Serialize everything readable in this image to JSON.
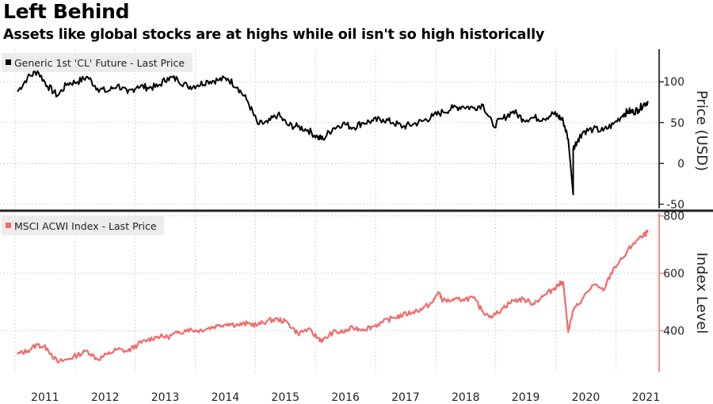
{
  "title": "Left Behind",
  "subtitle": "Assets like global stocks are at highs while oil isn't so high historically",
  "chart_data": [
    {
      "type": "line",
      "legend": "Generic 1st 'CL' Future - Last Price",
      "ylabel": "Price (USD)",
      "yticks": [
        "100",
        "50",
        "0",
        "-50"
      ],
      "ylim": [
        -55,
        140
      ],
      "color": "#000000",
      "x": [
        "2011-01",
        "2011-03",
        "2011-05",
        "2011-07",
        "2011-09",
        "2011-11",
        "2012-01",
        "2012-03",
        "2012-05",
        "2012-07",
        "2012-09",
        "2012-11",
        "2013-01",
        "2013-03",
        "2013-05",
        "2013-07",
        "2013-09",
        "2013-11",
        "2014-01",
        "2014-03",
        "2014-05",
        "2014-07",
        "2014-09",
        "2014-11",
        "2015-01",
        "2015-03",
        "2015-05",
        "2015-07",
        "2015-09",
        "2015-11",
        "2016-01",
        "2016-02",
        "2016-04",
        "2016-06",
        "2016-08",
        "2016-10",
        "2016-12",
        "2017-02",
        "2017-04",
        "2017-06",
        "2017-08",
        "2017-10",
        "2017-12",
        "2018-02",
        "2018-04",
        "2018-06",
        "2018-08",
        "2018-10",
        "2018-12",
        "2019-02",
        "2019-04",
        "2019-06",
        "2019-08",
        "2019-10",
        "2019-12",
        "2020-01",
        "2020-02",
        "2020-03",
        "2020-04",
        "2020-04",
        "2020-05",
        "2020-06",
        "2020-08",
        "2020-10",
        "2020-12",
        "2021-02",
        "2021-03",
        "2021-04",
        "2021-05",
        "2021-06",
        "2021-07"
      ],
      "values": [
        88,
        105,
        113,
        95,
        83,
        98,
        100,
        106,
        92,
        88,
        96,
        86,
        95,
        93,
        94,
        105,
        103,
        94,
        96,
        101,
        102,
        104,
        93,
        76,
        48,
        50,
        60,
        47,
        45,
        41,
        32,
        30,
        43,
        49,
        44,
        50,
        52,
        54,
        50,
        45,
        48,
        52,
        58,
        63,
        68,
        70,
        68,
        72,
        46,
        55,
        64,
        54,
        56,
        55,
        61,
        58,
        52,
        30,
        -38,
        18,
        30,
        39,
        42,
        40,
        48,
        60,
        64,
        63,
        66,
        72,
        76
      ]
    },
    {
      "type": "line",
      "legend": "MSCI ACWI Index - Last Price",
      "ylabel": "Index Level",
      "yticks": [
        "800",
        "600",
        "400"
      ],
      "ylim": [
        255,
        810
      ],
      "color": "#f06a6a",
      "x": [
        "2011-01",
        "2011-03",
        "2011-05",
        "2011-07",
        "2011-09",
        "2011-11",
        "2012-01",
        "2012-03",
        "2012-05",
        "2012-07",
        "2012-09",
        "2012-11",
        "2013-01",
        "2013-03",
        "2013-05",
        "2013-07",
        "2013-09",
        "2013-11",
        "2014-01",
        "2014-03",
        "2014-05",
        "2014-07",
        "2014-09",
        "2014-11",
        "2015-01",
        "2015-03",
        "2015-05",
        "2015-07",
        "2015-09",
        "2015-11",
        "2016-01",
        "2016-02",
        "2016-04",
        "2016-06",
        "2016-08",
        "2016-10",
        "2016-12",
        "2017-02",
        "2017-04",
        "2017-06",
        "2017-08",
        "2017-10",
        "2017-12",
        "2018-01",
        "2018-02",
        "2018-04",
        "2018-06",
        "2018-08",
        "2018-10",
        "2018-12",
        "2019-02",
        "2019-04",
        "2019-06",
        "2019-08",
        "2019-10",
        "2019-12",
        "2020-01",
        "2020-02",
        "2020-03",
        "2020-04",
        "2020-06",
        "2020-08",
        "2020-10",
        "2020-12",
        "2021-02",
        "2021-04",
        "2021-06",
        "2021-07"
      ],
      "values": [
        318,
        330,
        352,
        338,
        290,
        300,
        315,
        330,
        300,
        318,
        335,
        328,
        352,
        368,
        380,
        378,
        392,
        405,
        400,
        408,
        418,
        425,
        420,
        425,
        420,
        435,
        440,
        428,
        390,
        405,
        375,
        365,
        395,
        395,
        410,
        405,
        415,
        430,
        445,
        455,
        465,
        478,
        500,
        535,
        505,
        505,
        510,
        515,
        465,
        450,
        480,
        505,
        510,
        495,
        520,
        545,
        560,
        570,
        395,
        470,
        515,
        560,
        540,
        615,
        655,
        705,
        730,
        745
      ]
    }
  ],
  "x_axis": {
    "ticks": [
      "2011",
      "2012",
      "2013",
      "2014",
      "2015",
      "2016",
      "2017",
      "2018",
      "2019",
      "2020",
      "2021"
    ]
  },
  "colors": {
    "panel_divider": "#222222",
    "right_axis_top": "#000000",
    "right_axis_bottom": "#f06a6a",
    "legend_bg": "#ececec"
  }
}
